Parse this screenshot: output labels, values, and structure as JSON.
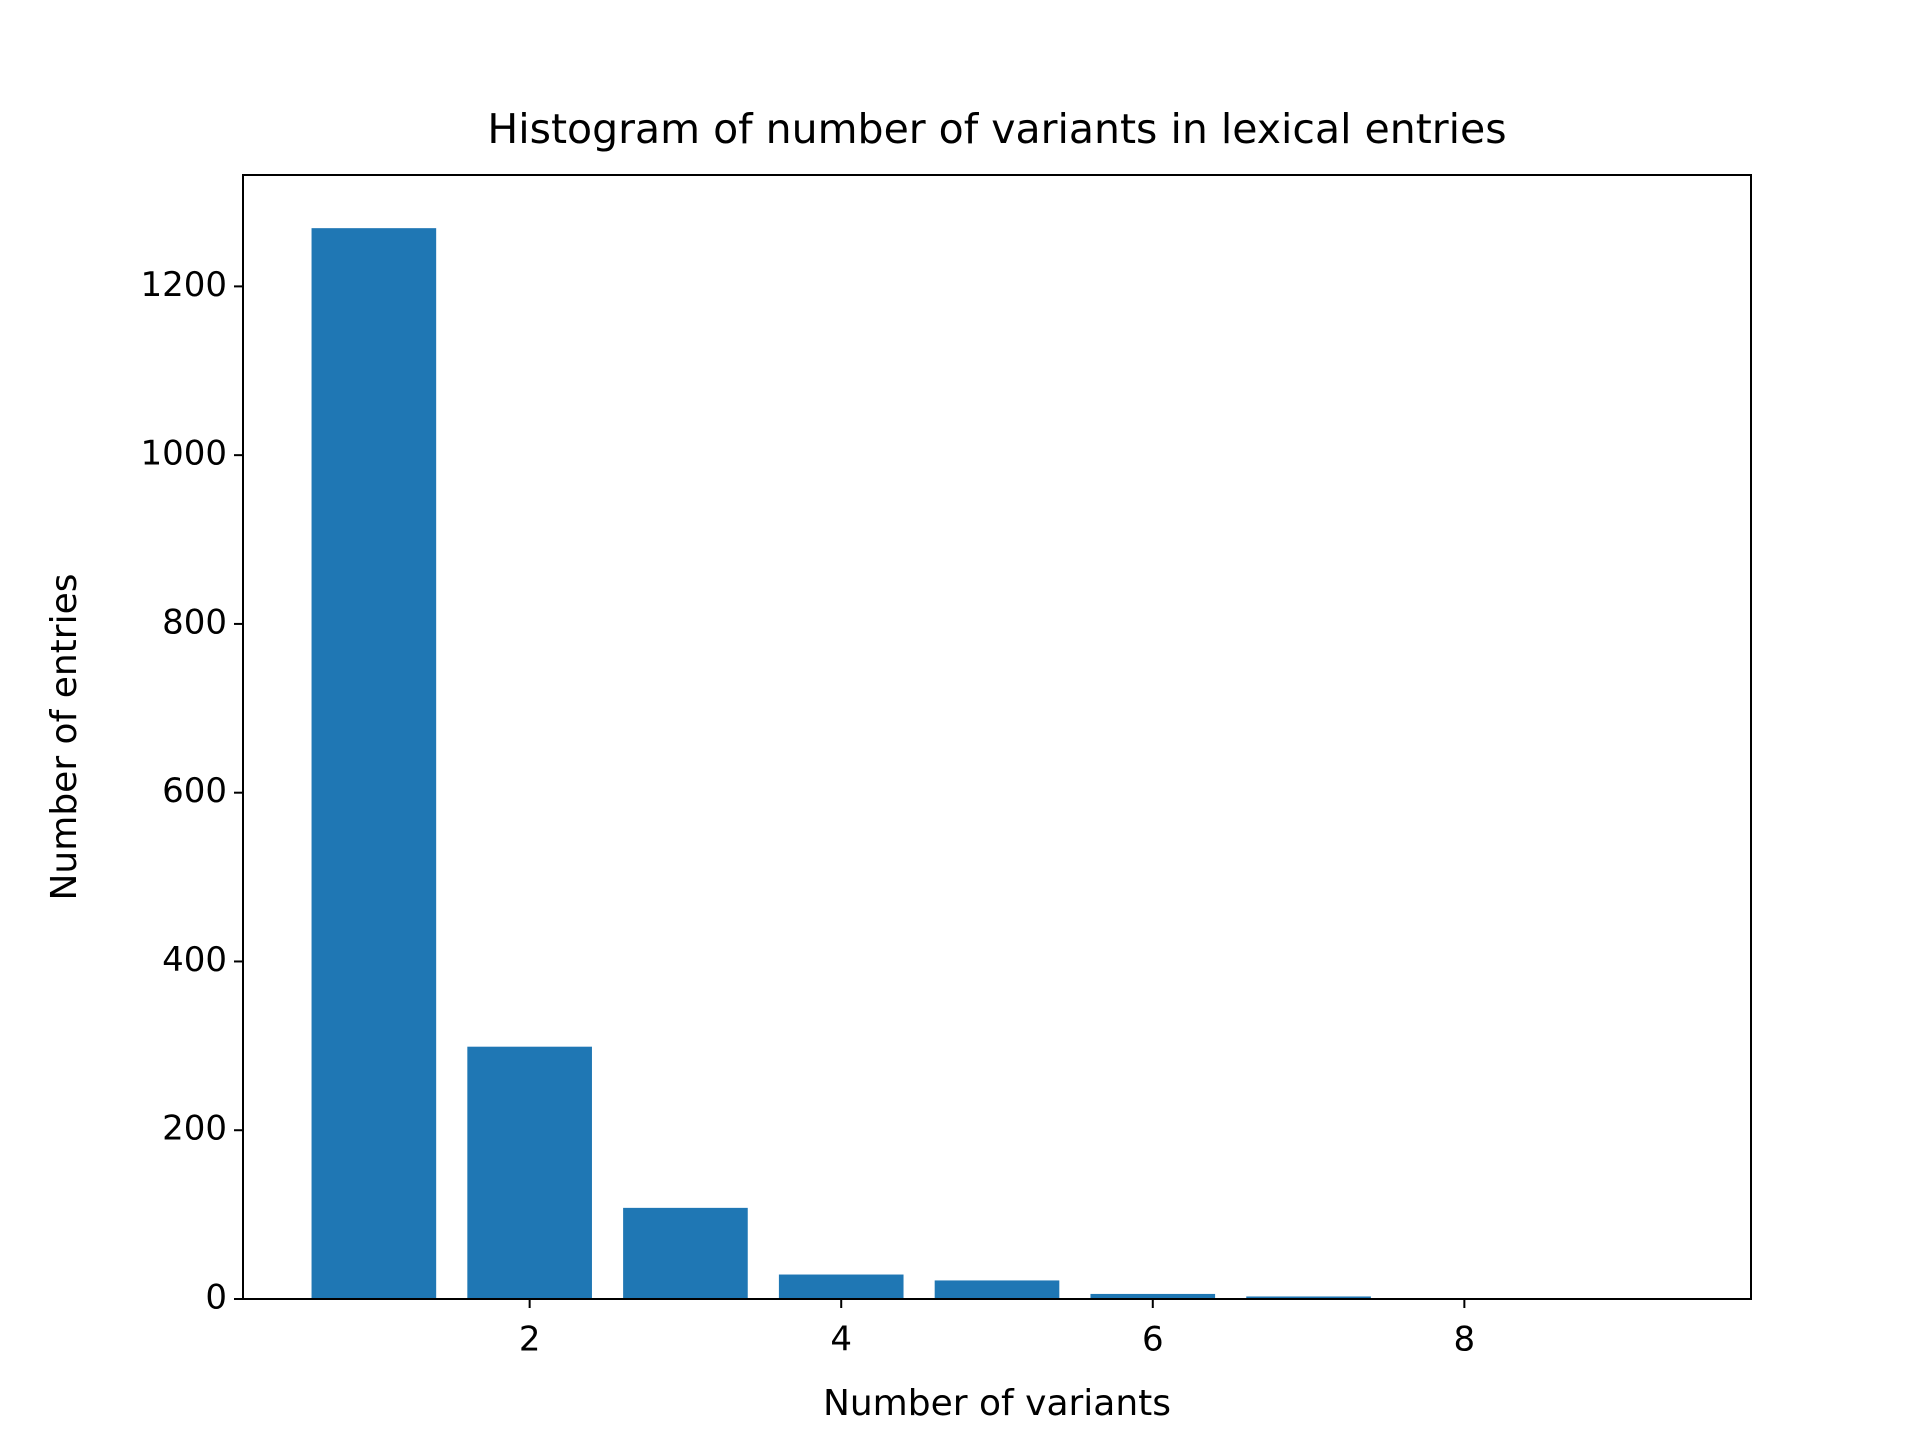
{
  "chart_data": {
    "type": "bar",
    "title": "Histogram of number of variants in lexical entries",
    "x_label": "Number of variants",
    "y_label": "Number of entries",
    "x": [
      1,
      2,
      3,
      4,
      5,
      6,
      7,
      8,
      9
    ],
    "values": [
      1269,
      299,
      108,
      29,
      22,
      6,
      3,
      1,
      1
    ],
    "color": "#1f77b4",
    "xlim": [
      0.16,
      9.84
    ],
    "xticks": [
      2,
      4,
      6,
      8
    ],
    "ylim": [
      0,
      1332
    ],
    "yticks": [
      0,
      200,
      400,
      600,
      800,
      1000,
      1200
    ],
    "grid": false
  }
}
